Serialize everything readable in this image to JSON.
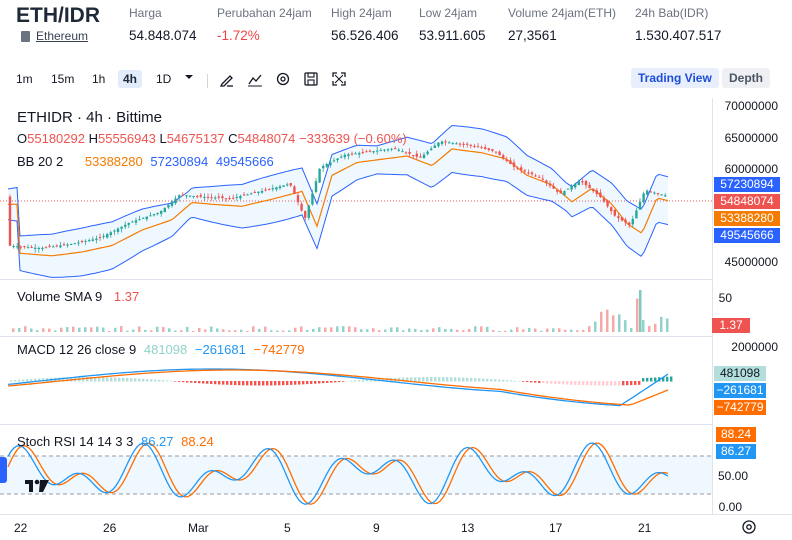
{
  "header": {
    "pair": "ETH/IDR",
    "asset_name": "Ethereum",
    "stats": [
      {
        "label": "Harga",
        "value": "54.848.074"
      },
      {
        "label": "Perubahan 24jam",
        "value": "-1.72%"
      },
      {
        "label": "High 24jam",
        "value": "56.526.406"
      },
      {
        "label": "Low 24jam",
        "value": "53.911.605"
      },
      {
        "label": "Volume 24jam(ETH)",
        "value": "27,3561"
      },
      {
        "label": "24h Bab(IDR)",
        "value": "1.530.407.517"
      }
    ]
  },
  "toolbar": {
    "intervals": [
      "1m",
      "15m",
      "1h",
      "4h",
      "1D"
    ],
    "active_interval": "4h",
    "tools": [
      "draw-icon",
      "line-chart-icon",
      "settings-icon",
      "save-icon",
      "fullscreen-icon"
    ],
    "tabs": [
      "Trading View",
      "Depth"
    ],
    "active_tab": "Trading View"
  },
  "main_legend": {
    "title": "ETHIDR · 4h · Bittime",
    "o_label": "O",
    "o": "55180292",
    "h_label": "H",
    "h": "55556943",
    "l_label": "L",
    "l": "54675137",
    "c_label": "C",
    "c": "54848074",
    "change": "−333639 (−0.60%)",
    "bb_label": "BB 20 2",
    "bb_basis": "53388280",
    "bb_upper": "57230894",
    "bb_lower": "49545666"
  },
  "price_axis": [
    "70000000",
    "65000000",
    "60000000",
    "45000000"
  ],
  "price_tags": {
    "upper": "57230894",
    "close": "54848074",
    "basis": "53388280",
    "lower": "49545666"
  },
  "volume": {
    "label": "Volume SMA 9",
    "value": "1.37",
    "axis": [
      "50"
    ],
    "tag": "1.37"
  },
  "macd": {
    "label": "MACD 12 26 close 9",
    "hist": "481098",
    "macd": "−261681",
    "signal": "−742779",
    "axis": [
      "2000000"
    ],
    "tags": [
      "481098",
      "−261681",
      "−742779"
    ]
  },
  "stoch": {
    "label": "Stoch RSI 14 14 3 3",
    "k": "86.27",
    "d": "88.24",
    "axis": [
      "50.00",
      "0.00"
    ],
    "tags": [
      "88.24",
      "86.27"
    ]
  },
  "time_axis": [
    "22",
    "26",
    "Mar",
    "5",
    "9",
    "13",
    "17",
    "21"
  ],
  "colors": {
    "up": "#26a69a",
    "down": "#ef5350",
    "bb_upper": "#2962ff",
    "bb_basis": "#f57c00",
    "stoch_k": "#2196f3",
    "stoch_d": "#ff6d00",
    "macd": "#2196f3",
    "signal": "#ff6d00"
  }
}
